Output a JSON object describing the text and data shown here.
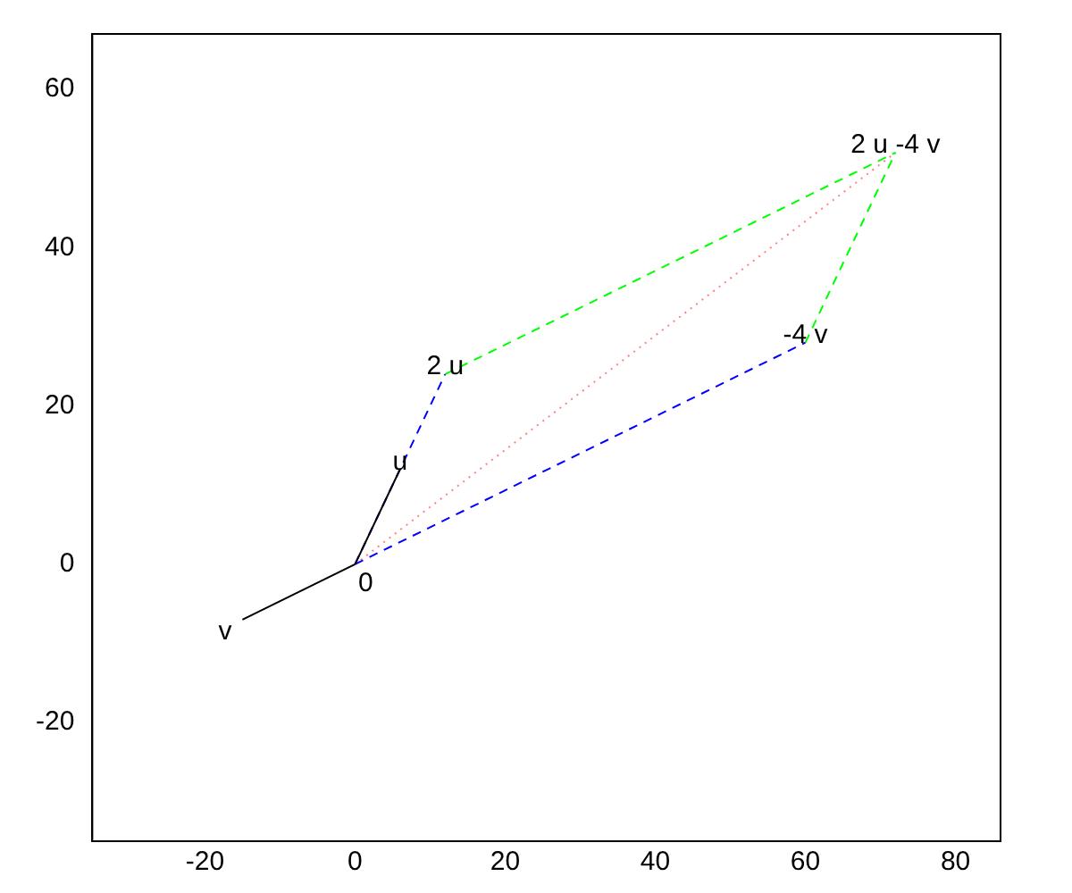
{
  "chart_data": {
    "type": "line",
    "xlim": [
      -35,
      86
    ],
    "ylim": [
      -35,
      67
    ],
    "xticks": [
      -20,
      0,
      20,
      40,
      60,
      80
    ],
    "yticks": [
      -20,
      0,
      20,
      40,
      60
    ],
    "grid": false,
    "legend": false,
    "marker": "none",
    "series": [
      {
        "color": "#000000",
        "x": [
          0,
          6
        ],
        "values": [
          0,
          12
        ],
        "line_style": "solid"
      },
      {
        "color": "#000000",
        "x": [
          0,
          -15
        ],
        "values": [
          0,
          -7
        ],
        "line_style": "solid"
      },
      {
        "color": "#0000ff",
        "x": [
          0,
          12
        ],
        "values": [
          0,
          24
        ],
        "line_style": "dashed"
      },
      {
        "color": "#0000ff",
        "x": [
          0,
          60
        ],
        "values": [
          0,
          28
        ],
        "line_style": "dashed"
      },
      {
        "color": "#00ff00",
        "x": [
          12,
          72
        ],
        "values": [
          24,
          52
        ],
        "line_style": "dashed"
      },
      {
        "color": "#00ff00",
        "x": [
          60,
          72
        ],
        "values": [
          28,
          52
        ],
        "line_style": "dashed"
      },
      {
        "color": "#ff8080",
        "x": [
          0,
          72
        ],
        "values": [
          0,
          52
        ],
        "line_style": "dotted"
      }
    ],
    "annotations": [
      {
        "text": "0",
        "x": 0,
        "y": 0
      },
      {
        "text": "u",
        "x": 6,
        "y": 12
      },
      {
        "text": "v",
        "x": -15,
        "y": -7
      },
      {
        "text": "2 u",
        "x": 12,
        "y": 24
      },
      {
        "text": "-4 v",
        "x": 60,
        "y": 28
      },
      {
        "text": "2 u -4 v",
        "x": 72,
        "y": 52
      }
    ]
  }
}
